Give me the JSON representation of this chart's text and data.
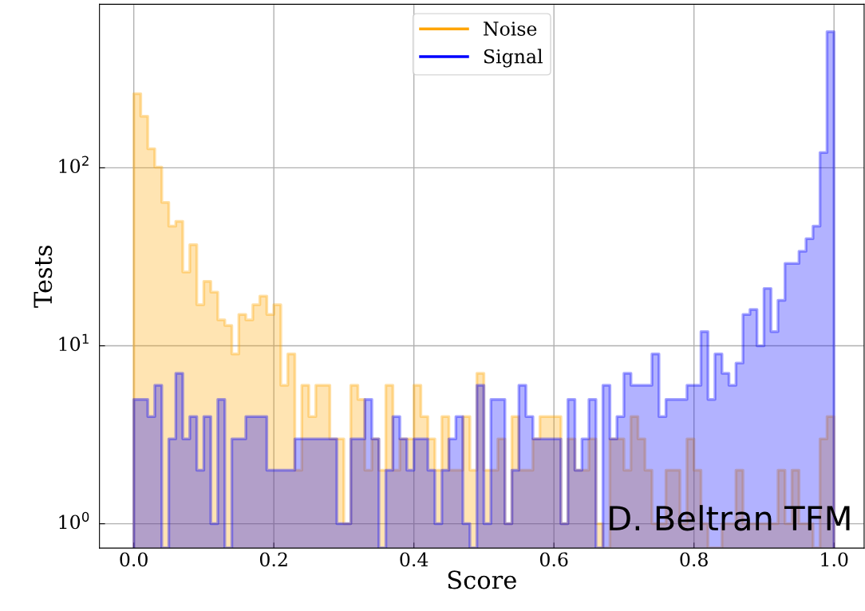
{
  "chart_data": {
    "type": "histogram",
    "xlabel": "Score",
    "ylabel": "Tests",
    "bins": [
      0.0,
      0.01,
      0.02,
      0.03,
      0.04,
      0.05,
      0.06,
      0.07,
      0.08,
      0.09,
      0.1,
      0.11,
      0.12,
      0.13,
      0.14,
      0.15,
      0.16,
      0.17,
      0.18,
      0.19,
      0.2,
      0.21,
      0.22,
      0.23,
      0.24,
      0.25,
      0.26,
      0.27,
      0.28,
      0.29,
      0.3,
      0.31,
      0.32,
      0.33,
      0.34,
      0.35,
      0.36,
      0.37,
      0.38,
      0.39,
      0.4,
      0.41,
      0.42,
      0.43,
      0.44,
      0.45,
      0.46,
      0.47,
      0.48,
      0.49,
      0.5,
      0.51,
      0.52,
      0.53,
      0.54,
      0.55,
      0.56,
      0.57,
      0.58,
      0.59,
      0.6,
      0.61,
      0.62,
      0.63,
      0.64,
      0.65,
      0.66,
      0.67,
      0.68,
      0.69,
      0.7,
      0.71,
      0.72,
      0.73,
      0.74,
      0.75,
      0.76,
      0.77,
      0.78,
      0.79,
      0.8,
      0.81,
      0.82,
      0.83,
      0.84,
      0.85,
      0.86,
      0.87,
      0.88,
      0.89,
      0.9,
      0.91,
      0.92,
      0.93,
      0.94,
      0.95,
      0.96,
      0.97,
      0.98,
      0.99,
      1.0
    ],
    "series": [
      {
        "name": "Noise",
        "color": "#ffa500",
        "values": [
          261,
          195,
          128,
          101,
          64,
          47,
          50,
          26,
          37,
          17,
          23,
          20,
          14,
          13,
          9,
          15,
          14,
          17,
          19,
          15,
          17,
          6,
          9,
          2,
          6,
          4,
          6,
          6,
          3,
          3,
          1,
          6,
          5,
          2,
          3,
          2,
          6,
          2,
          3,
          3,
          6,
          4,
          3,
          2,
          4,
          2,
          2,
          4,
          2,
          7,
          2,
          2,
          3,
          1,
          4,
          2,
          2,
          3,
          4,
          4,
          4,
          1,
          3,
          2,
          2,
          3,
          1,
          null,
          3,
          3,
          2,
          4,
          3,
          2,
          1,
          1,
          2,
          2,
          1,
          3,
          2,
          1,
          null,
          null,
          1,
          1,
          2,
          1,
          1,
          1,
          1,
          1,
          2,
          1,
          2,
          1,
          1,
          null,
          3,
          4
        ]
      },
      {
        "name": "Signal",
        "color": "#0000ff",
        "values": [
          5,
          5,
          4,
          6,
          null,
          3,
          7,
          3,
          4,
          2,
          4,
          1,
          5,
          null,
          3,
          3,
          4,
          4,
          4,
          2,
          2,
          2,
          2,
          3,
          3,
          3,
          3,
          3,
          3,
          1,
          1,
          3,
          3,
          5,
          3,
          null,
          2,
          4,
          3,
          2,
          3,
          3,
          2,
          1,
          2,
          3,
          4,
          1,
          null,
          6,
          1,
          5,
          5,
          1,
          2,
          6,
          4,
          3,
          3,
          3,
          3,
          1,
          5,
          2,
          3,
          5,
          null,
          6,
          3,
          4,
          7,
          6,
          6,
          6,
          9,
          4,
          5,
          5,
          5,
          6,
          6,
          12,
          5,
          9,
          7,
          6,
          8,
          15,
          16,
          10,
          21,
          12,
          18,
          29,
          29,
          34,
          40,
          47,
          122,
          582
        ]
      }
    ],
    "log": true,
    "xlim": [
      -0.049,
      1.043
    ],
    "ylim": [
      0.73,
      830
    ],
    "xticks": [
      {
        "value": 0.0,
        "label": "0.0"
      },
      {
        "value": 0.2,
        "label": "0.2"
      },
      {
        "value": 0.4,
        "label": "0.4"
      },
      {
        "value": 0.6,
        "label": "0.6"
      },
      {
        "value": 0.8,
        "label": "0.8"
      },
      {
        "value": 1.0,
        "label": "1.0"
      }
    ],
    "yticks": [
      {
        "value": 1,
        "label": "10$^{0}$"
      },
      {
        "value": 10,
        "label": "10$^{1}$"
      },
      {
        "value": 100,
        "label": "10$^{2}$"
      }
    ],
    "grid": true,
    "legend": "top",
    "line_style": "solid",
    "annotations": [
      "D. Beltran TFM"
    ]
  }
}
